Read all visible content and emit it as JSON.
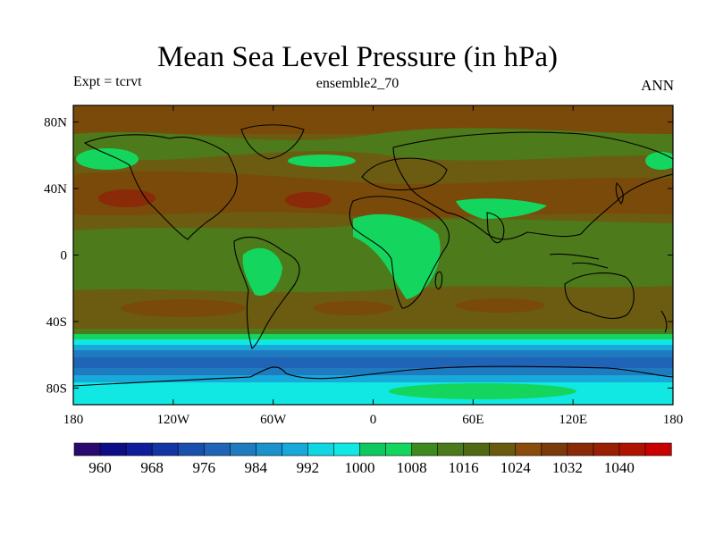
{
  "chart_data": {
    "type": "heatmap",
    "title": "Mean Sea Level Pressure (in hPa)",
    "left_string": "Expt = tcrvt",
    "center_string": "ensemble2_70",
    "right_string": "ANN",
    "map": "world, cylindrical equidistant, continent outlines",
    "x_ticks": [
      "180",
      "120W",
      "60W",
      "0",
      "60E",
      "120E",
      "180"
    ],
    "y_ticks": [
      "80N",
      "40N",
      "0",
      "40S",
      "80S"
    ],
    "colorbar": {
      "labels": [
        "960",
        "968",
        "976",
        "984",
        "992",
        "1000",
        "1008",
        "1016",
        "1024",
        "1032",
        "1040"
      ],
      "colors": [
        "#2a0a6e",
        "#0d0d87",
        "#0f1d9c",
        "#1435a6",
        "#1a4fae",
        "#1f64b6",
        "#1f7bc0",
        "#1a92cc",
        "#16a9d9",
        "#11d7e3",
        "#11e8e3",
        "#10c860",
        "#14d65e",
        "#3e8a1f",
        "#4a7a1c",
        "#506a14",
        "#6a5a10",
        "#8a4c0c",
        "#7a3a0a",
        "#8a2a08",
        "#9a2004",
        "#b01400",
        "#c80000"
      ]
    },
    "bands": [
      {
        "lat": "80N-60N",
        "value": 1016
      },
      {
        "lat": "40N-30N",
        "value": 1024
      },
      {
        "lat": "20N-20S",
        "value": 1012
      },
      {
        "lat": "30S-40S",
        "value": 1020
      },
      {
        "lat": "50S",
        "value": 1004
      },
      {
        "lat": "60S",
        "value": 984
      },
      {
        "lat": "70S-80S",
        "value": 996
      }
    ]
  }
}
